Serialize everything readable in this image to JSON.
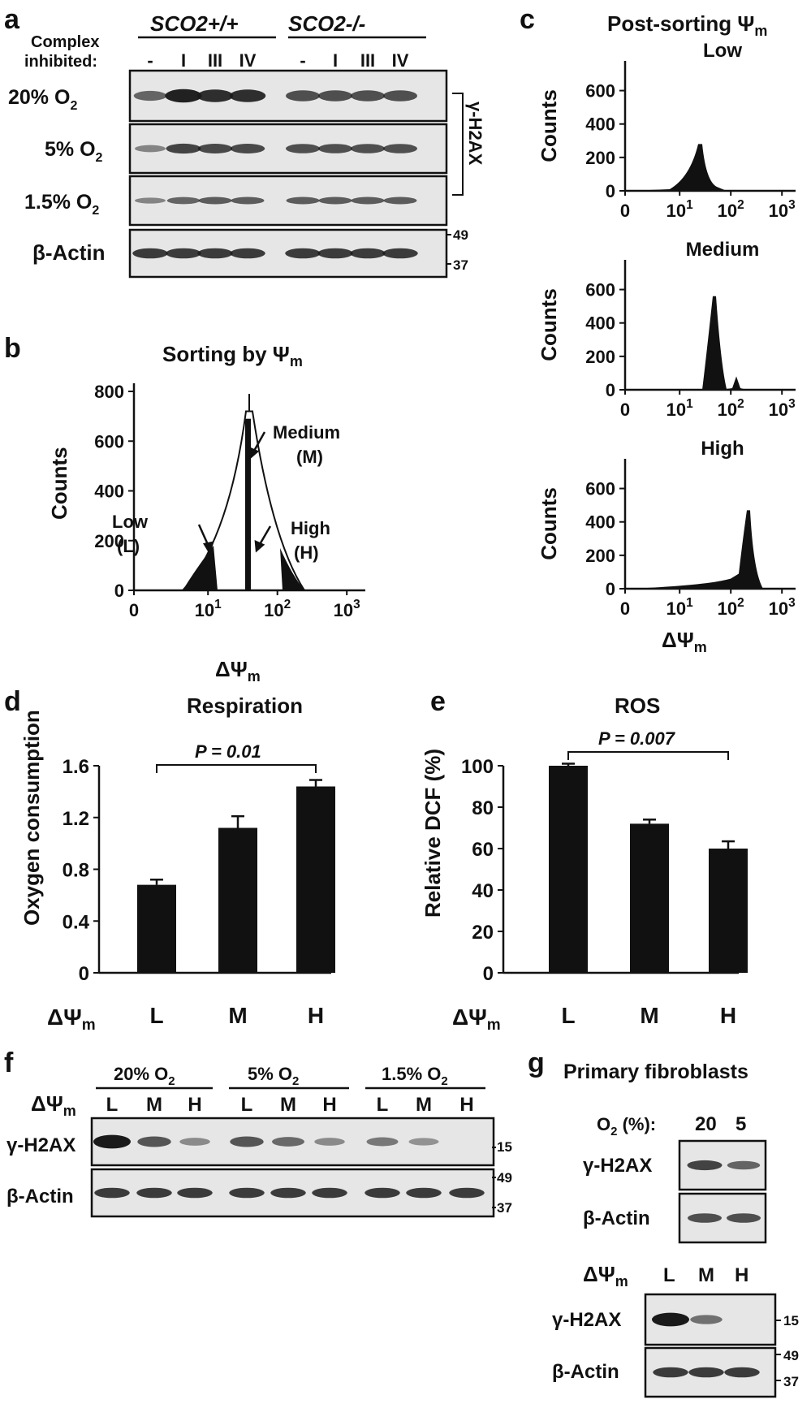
{
  "panels": {
    "a": {
      "letter": "a",
      "genotypes": [
        "SCO2+/+",
        "SCO2-/-"
      ],
      "complex_label_1": "Complex",
      "complex_label_2": "inhibited:",
      "lanes": [
        "-",
        "I",
        "III",
        "IV",
        "-",
        "I",
        "III",
        "IV"
      ],
      "rows": [
        "20% O",
        "5% O",
        "1.5% O"
      ],
      "row_sub": "2",
      "actin": "β-Actin",
      "target": "γ-H2AX",
      "mw": [
        "49",
        "37"
      ],
      "bands": {
        "r0": [
          0.45,
          0.95,
          0.85,
          0.85,
          0.6,
          0.6,
          0.6,
          0.6
        ],
        "r1": [
          0.2,
          0.7,
          0.65,
          0.65,
          0.6,
          0.6,
          0.6,
          0.6
        ],
        "r2": [
          0.2,
          0.45,
          0.5,
          0.5,
          0.5,
          0.5,
          0.5,
          0.5
        ],
        "actin": [
          0.75,
          0.75,
          0.75,
          0.75,
          0.75,
          0.75,
          0.75,
          0.75
        ]
      }
    },
    "b": {
      "letter": "b",
      "title": "Sorting by Ψ",
      "title_sub": "m",
      "ylabel": "Counts",
      "yticks": [
        "0",
        "200",
        "400",
        "600",
        "800"
      ],
      "xticks": [
        "0",
        "10",
        "10",
        "10"
      ],
      "xtick_exp": [
        "",
        "1",
        "2",
        "3"
      ],
      "xlabel": "ΔΨ",
      "xlabel_sub": "m",
      "labels": {
        "low1": "Low",
        "low2": "(L)",
        "med1": "Medium",
        "med2": "(M)",
        "high1": "High",
        "high2": "(H)"
      }
    },
    "c": {
      "letter": "c",
      "title": "Post-sorting Ψ",
      "title_sub": "m",
      "ylabel": "Counts",
      "yticks": [
        "0",
        "200",
        "400",
        "600"
      ],
      "xticks": [
        "0",
        "10",
        "10",
        "10"
      ],
      "xtick_exp": [
        "",
        "1",
        "2",
        "3"
      ],
      "xlabel": "ΔΨ",
      "xlabel_sub": "m",
      "subplots": [
        "Low",
        "Medium",
        "High"
      ]
    },
    "d": {
      "letter": "d",
      "title": "Respiration",
      "ylabel": "Oxygen consumption",
      "yticks": [
        "0",
        "0.4",
        "0.8",
        "1.2",
        "1.6"
      ],
      "pval": "P = 0.01",
      "x_prefix": "ΔΨ",
      "x_prefix_sub": "m"
    },
    "e": {
      "letter": "e",
      "title": "ROS",
      "ylabel": "Relative DCF (%)",
      "yticks": [
        "0",
        "20",
        "40",
        "60",
        "80",
        "100"
      ],
      "pval": "P = 0.007",
      "x_prefix": "ΔΨ",
      "x_prefix_sub": "m"
    },
    "f": {
      "letter": "f",
      "groups": [
        "20% O",
        "5% O",
        "1.5% O"
      ],
      "group_sub": "2",
      "row_prefix": "ΔΨ",
      "row_prefix_sub": "m",
      "lanes": [
        "L",
        "M",
        "H",
        "L",
        "M",
        "H",
        "L",
        "M",
        "H"
      ],
      "target": "γ-H2AX",
      "actin": "β-Actin",
      "mw": [
        "15",
        "49",
        "37"
      ],
      "bands": {
        "target": [
          1.0,
          0.55,
          0.15,
          0.55,
          0.4,
          0.15,
          0.3,
          0.1,
          0.0
        ],
        "actin": [
          0.75,
          0.75,
          0.75,
          0.75,
          0.75,
          0.75,
          0.75,
          0.75,
          0.75
        ]
      }
    },
    "g": {
      "letter": "g",
      "title": "Primary fibroblasts",
      "o2_label": "O",
      "o2_sub": "2",
      "o2_unit": " (%):",
      "o2_lanes": [
        "20",
        "5"
      ],
      "target": "γ-H2AX",
      "actin": "β-Actin",
      "row_prefix": "ΔΨ",
      "row_prefix_sub": "m",
      "lanes": [
        "L",
        "M",
        "H"
      ],
      "mw": [
        "15",
        "49",
        "37"
      ],
      "bands_top": {
        "target": [
          0.7,
          0.45
        ],
        "actin": [
          0.6,
          0.6
        ]
      },
      "bands_bottom": {
        "target": [
          1.0,
          0.35,
          0.0
        ],
        "actin": [
          0.75,
          0.75,
          0.75
        ]
      }
    }
  },
  "chart_data": [
    {
      "type": "bar",
      "title": "Respiration",
      "categories": [
        "L",
        "M",
        "H"
      ],
      "values": [
        0.68,
        1.12,
        1.44
      ],
      "errors": [
        0.04,
        0.09,
        0.05
      ],
      "ylabel": "Oxygen consumption",
      "ylim": [
        0,
        1.6
      ]
    },
    {
      "type": "bar",
      "title": "ROS",
      "categories": [
        "L",
        "M",
        "H"
      ],
      "values": [
        100,
        72,
        60
      ],
      "errors": [
        1,
        2,
        3.5
      ],
      "ylabel": "Relative DCF (%)",
      "ylim": [
        0,
        100
      ]
    }
  ],
  "colors": {
    "bar": "#111111",
    "blot_bg": "#e6e6e6",
    "band": "#1a1a1a"
  }
}
